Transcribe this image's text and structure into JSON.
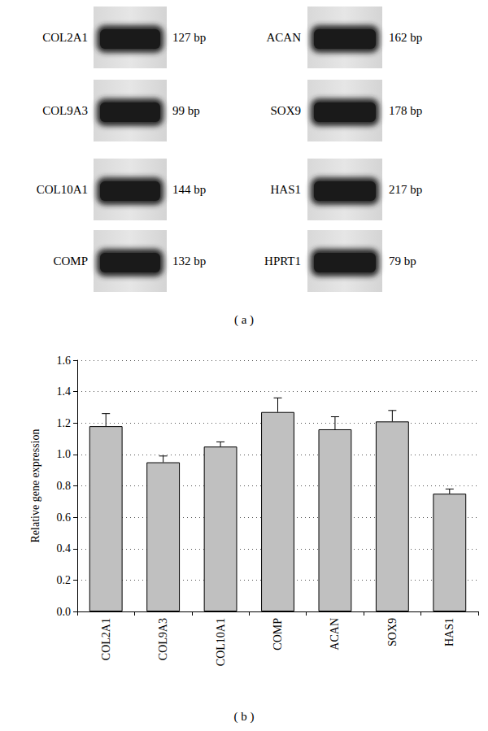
{
  "gel": {
    "panel_label": "( a )",
    "columns": [
      [
        {
          "gene": "COL2A1",
          "size": "127 bp"
        },
        {
          "gene": "COL9A3",
          "size": "99 bp"
        },
        {
          "gene": "COL10A1",
          "size": "144 bp"
        },
        {
          "gene": "COMP",
          "size": "132 bp"
        }
      ],
      [
        {
          "gene": "ACAN",
          "size": "162 bp"
        },
        {
          "gene": "SOX9",
          "size": "178 bp"
        },
        {
          "gene": "HAS1",
          "size": "217 bp"
        },
        {
          "gene": "HPRT1",
          "size": "79 bp"
        }
      ]
    ]
  },
  "chart_data": {
    "type": "bar",
    "panel_label": "( b )",
    "y_label": "Relative gene expression",
    "categories": [
      "COL2A1",
      "COL9A3",
      "COL10A1",
      "COMP",
      "ACAN",
      "SOX9",
      "HAS1"
    ],
    "values": [
      1.18,
      0.95,
      1.05,
      1.27,
      1.16,
      1.21,
      0.75
    ],
    "errors": [
      0.08,
      0.04,
      0.03,
      0.09,
      0.08,
      0.07,
      0.03
    ],
    "color": "#c0c0c0",
    "ylim": [
      0,
      1.6
    ],
    "yticks": [
      {
        "value": 0,
        "label": "0.0"
      },
      {
        "value": 0.2,
        "label": "0.2"
      },
      {
        "value": 0.4,
        "label": "0.4"
      },
      {
        "value": 0.6,
        "label": "0.6"
      },
      {
        "value": 0.8,
        "label": "0.8"
      },
      {
        "value": 1,
        "label": "1.0"
      },
      {
        "value": 1.2,
        "label": "1.2"
      },
      {
        "value": 1.4,
        "label": "1.4"
      },
      {
        "value": 1.6,
        "label": "1.6"
      }
    ],
    "grid": true
  }
}
